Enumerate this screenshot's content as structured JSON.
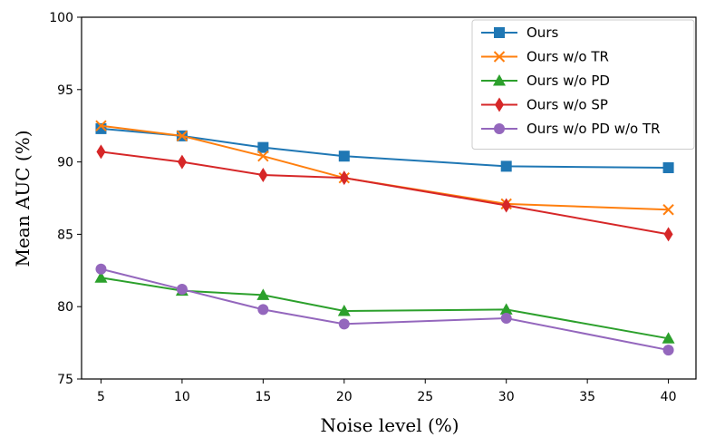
{
  "chart_data": {
    "type": "line",
    "title": "",
    "xlabel": "Noise level (%)",
    "ylabel": "Mean AUC (%)",
    "xlim": [
      3.8,
      41.7
    ],
    "ylim": [
      75,
      100
    ],
    "x_ticks": [
      5,
      10,
      15,
      20,
      25,
      30,
      35,
      40
    ],
    "y_ticks": [
      75,
      80,
      85,
      90,
      95,
      100
    ],
    "grid": false,
    "legend_position": "top-right",
    "x": [
      5,
      10,
      15,
      20,
      30,
      40
    ],
    "series": [
      {
        "name": "Ours",
        "color": "#1f77b4",
        "marker": "square",
        "values": [
          92.3,
          91.8,
          91.0,
          90.4,
          89.7,
          89.6
        ]
      },
      {
        "name": "Ours w/o TR",
        "color": "#ff7f0e",
        "marker": "x",
        "values": [
          92.5,
          91.8,
          90.4,
          88.9,
          87.1,
          86.7
        ]
      },
      {
        "name": "Ours w/o PD",
        "color": "#2ca02c",
        "marker": "triangle",
        "values": [
          82.0,
          81.1,
          80.8,
          79.7,
          79.8,
          77.8
        ]
      },
      {
        "name": "Ours w/o SP",
        "color": "#d62728",
        "marker": "diamond",
        "values": [
          90.7,
          90.0,
          89.1,
          88.9,
          87.0,
          85.0
        ]
      },
      {
        "name": "Ours w/o PD w/o TR",
        "color": "#9467bd",
        "marker": "circle",
        "values": [
          82.6,
          81.2,
          79.8,
          78.8,
          79.2,
          77.0
        ]
      }
    ]
  }
}
